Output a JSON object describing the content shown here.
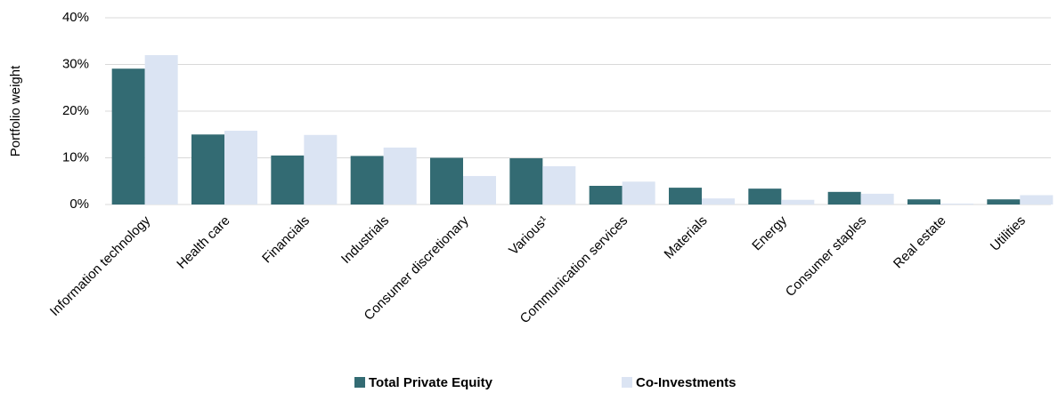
{
  "chart_data": {
    "type": "bar",
    "ylabel": "Portfolio weight",
    "categories": [
      "Information technology",
      "Health care",
      "Financials",
      "Industrials",
      "Consumer discretionary",
      "Various¹",
      "Communication services",
      "Materials",
      "Energy",
      "Consumer staples",
      "Real estate",
      "Utilities"
    ],
    "series": [
      {
        "name": "Total Private Equity",
        "color": "#336b73",
        "values": [
          29.1,
          15.0,
          10.5,
          10.4,
          10.0,
          9.9,
          4.0,
          3.6,
          3.4,
          2.7,
          1.1,
          1.1
        ]
      },
      {
        "name": "Co-Investments",
        "color": "#dbe4f3",
        "values": [
          32.0,
          15.8,
          14.9,
          12.2,
          6.1,
          8.2,
          4.9,
          1.3,
          1.0,
          2.3,
          0.2,
          2.0
        ]
      }
    ],
    "ylim": [
      0,
      40
    ],
    "yticks": [
      {
        "value": 0,
        "label": "0%"
      },
      {
        "value": 10,
        "label": "10%"
      },
      {
        "value": 20,
        "label": "20%"
      },
      {
        "value": 30,
        "label": "30%"
      },
      {
        "value": 40,
        "label": "40%"
      }
    ],
    "grid": true,
    "legend": "bottom"
  }
}
